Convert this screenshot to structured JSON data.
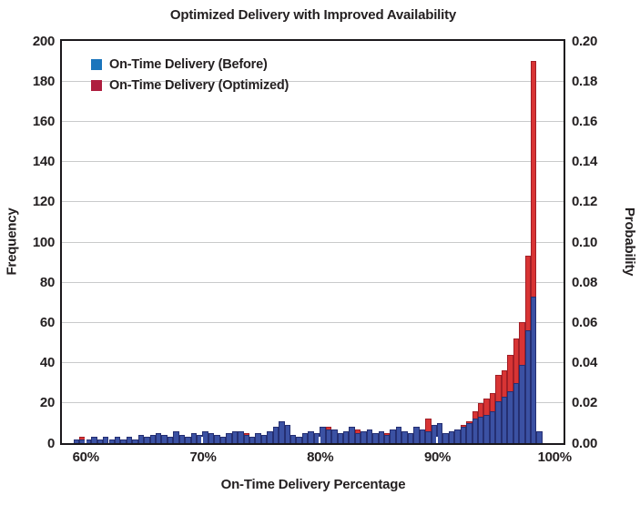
{
  "title": "Optimized Delivery with Improved Availability",
  "axes": {
    "left_label": "Frequency",
    "right_label": "Probability",
    "x_label": "On-Time Delivery Percentage"
  },
  "legend": [
    {
      "label": "On-Time Delivery (Before)",
      "swatch_color": "#1b75bc"
    },
    {
      "label": "On-Time Delivery (Optimized)",
      "swatch_color": "#ae1e3f"
    }
  ],
  "colors": {
    "text": "#231f20",
    "plot_border": "#1b181c",
    "gridline": "#c9cacb",
    "before_fill": "#3b51a3",
    "before_edge": "#252f72",
    "optimized_fill": "#d83434",
    "optimized_edge": "#a11f27"
  },
  "chart_data": {
    "type": "bar",
    "subtype": "overlaid-histogram",
    "title": "Optimized Delivery with Improved Availability",
    "xlabel": "On-Time Delivery Percentage",
    "ylabel_left": "Frequency",
    "ylabel_right": "Probability",
    "x_domain": [
      58.0,
      100.8
    ],
    "ylim": [
      0,
      200
    ],
    "ylim_right": [
      0.0,
      0.2
    ],
    "grid": "horizontal",
    "legend_position": "upper-left-inside",
    "y_ticks_left": [
      0,
      20,
      40,
      60,
      80,
      100,
      120,
      140,
      160,
      180,
      200
    ],
    "y_tick_labels_left": [
      "0",
      "20",
      "40",
      "60",
      "80",
      "100",
      "120",
      "140",
      "160",
      "180",
      "200"
    ],
    "y_tick_labels_right": [
      "0.00",
      "0.02",
      "0.04",
      "0.06",
      "0.08",
      "0.10",
      "0.12",
      "0.14",
      "0.16",
      "0.18",
      "0.20"
    ],
    "x_ticks": [
      {
        "value": 60,
        "label": "60%"
      },
      {
        "value": 70,
        "label": "70%"
      },
      {
        "value": 80,
        "label": "80%"
      },
      {
        "value": 90,
        "label": "90%"
      },
      {
        "value": 100,
        "label": "100%"
      }
    ],
    "bin_start": 59.0,
    "bin_width": 0.5,
    "series": [
      {
        "name": "On-Time Delivery (Before)",
        "values": [
          2,
          2,
          2,
          3,
          2,
          3,
          2,
          3,
          2,
          3,
          2,
          4,
          3,
          4,
          5,
          4,
          3,
          6,
          4,
          3,
          5,
          4,
          6,
          5,
          4,
          3,
          5,
          6,
          6,
          4,
          3,
          5,
          4,
          6,
          8,
          11,
          9,
          4,
          3,
          5,
          6,
          5,
          8,
          7,
          7,
          5,
          6,
          8,
          5,
          6,
          7,
          5,
          6,
          4,
          7,
          8,
          6,
          5,
          8,
          7,
          6,
          9,
          10,
          5,
          6,
          7,
          8,
          10,
          12,
          13,
          14,
          16,
          21,
          23,
          26,
          30,
          39,
          56,
          73,
          6
        ]
      },
      {
        "name": "On-Time Delivery (Optimized)",
        "values": [
          1,
          3,
          2,
          1,
          2,
          2,
          1,
          2,
          2,
          3,
          2,
          2,
          3,
          3,
          2,
          2,
          3,
          2,
          2,
          3,
          5,
          3,
          3,
          2,
          2,
          3,
          3,
          3,
          6,
          5,
          2,
          2,
          3,
          4,
          5,
          4,
          3,
          4,
          3,
          4,
          3,
          4,
          4,
          8,
          3,
          4,
          4,
          4,
          7,
          4,
          6,
          4,
          5,
          5,
          5,
          7,
          4,
          5,
          6,
          5,
          12,
          7,
          4,
          5,
          6,
          7,
          9,
          11,
          16,
          20,
          22,
          25,
          34,
          36,
          44,
          52,
          60,
          93,
          190,
          2
        ]
      }
    ]
  }
}
